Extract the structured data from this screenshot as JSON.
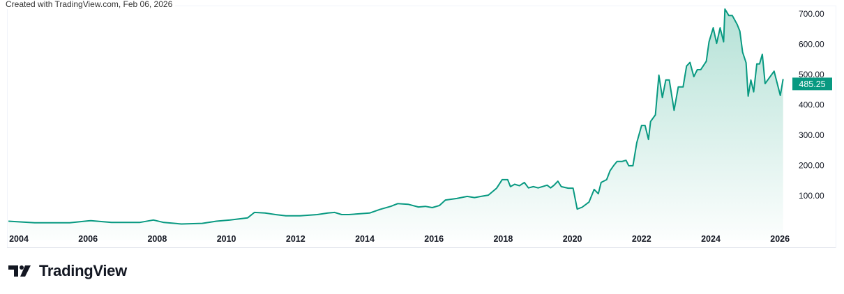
{
  "caption": "Created with TradingView.com, Feb 06, 2026",
  "brand": "TradingView",
  "colors": {
    "line": "#089981",
    "area_top": "#a7dccf",
    "price_tag": "#089981",
    "text": "#131722"
  },
  "chart_data": {
    "type": "area",
    "title": "",
    "xlabel": "",
    "ylabel": "",
    "x_ticks": [
      "2004",
      "2006",
      "2008",
      "2010",
      "2012",
      "2014",
      "2016",
      "2018",
      "2020",
      "2022",
      "2024",
      "2026"
    ],
    "y_ticks": [
      "100.00",
      "200.00",
      "300.00",
      "400.00",
      "500.00",
      "600.00",
      "700.00"
    ],
    "y_axis_position": "right",
    "xlim": [
      2003.7,
      2026.3
    ],
    "ylim": [
      -5,
      720
    ],
    "grid": false,
    "last_price": "485.25",
    "series": [
      {
        "points": [
          [
            2003.7,
            16
          ],
          [
            2004.46,
            11
          ],
          [
            2005.47,
            11
          ],
          [
            2006.08,
            18
          ],
          [
            2006.68,
            12
          ],
          [
            2007.49,
            12
          ],
          [
            2007.89,
            20
          ],
          [
            2008.19,
            12
          ],
          [
            2008.7,
            7
          ],
          [
            2009.3,
            9
          ],
          [
            2009.71,
            16
          ],
          [
            2010.11,
            20
          ],
          [
            2010.61,
            27
          ],
          [
            2010.81,
            45
          ],
          [
            2011.12,
            43
          ],
          [
            2011.42,
            38
          ],
          [
            2011.72,
            34
          ],
          [
            2012.13,
            34
          ],
          [
            2012.63,
            38
          ],
          [
            2012.93,
            43
          ],
          [
            2013.13,
            45
          ],
          [
            2013.33,
            38
          ],
          [
            2013.54,
            38
          ],
          [
            2014.14,
            43
          ],
          [
            2014.44,
            55
          ],
          [
            2014.75,
            65
          ],
          [
            2014.95,
            74
          ],
          [
            2015.25,
            72
          ],
          [
            2015.55,
            63
          ],
          [
            2015.75,
            65
          ],
          [
            2015.95,
            61
          ],
          [
            2016.16,
            68
          ],
          [
            2016.33,
            86
          ],
          [
            2016.66,
            91
          ],
          [
            2016.96,
            98
          ],
          [
            2017.17,
            94
          ],
          [
            2017.36,
            98
          ],
          [
            2017.57,
            102
          ],
          [
            2017.81,
            125
          ],
          [
            2017.97,
            153
          ],
          [
            2018.13,
            153
          ],
          [
            2018.21,
            130
          ],
          [
            2018.33,
            138
          ],
          [
            2018.47,
            133
          ],
          [
            2018.61,
            144
          ],
          [
            2018.73,
            126
          ],
          [
            2018.87,
            130
          ],
          [
            2019.01,
            126
          ],
          [
            2019.13,
            130
          ],
          [
            2019.27,
            135
          ],
          [
            2019.37,
            126
          ],
          [
            2019.47,
            135
          ],
          [
            2019.58,
            148
          ],
          [
            2019.68,
            130
          ],
          [
            2019.88,
            125
          ],
          [
            2020.02,
            125
          ],
          [
            2020.14,
            56
          ],
          [
            2020.28,
            62
          ],
          [
            2020.48,
            79
          ],
          [
            2020.63,
            121
          ],
          [
            2020.75,
            107
          ],
          [
            2020.83,
            144
          ],
          [
            2020.99,
            153
          ],
          [
            2021.09,
            183
          ],
          [
            2021.19,
            199
          ],
          [
            2021.29,
            213
          ],
          [
            2021.43,
            213
          ],
          [
            2021.55,
            217
          ],
          [
            2021.63,
            199
          ],
          [
            2021.75,
            199
          ],
          [
            2021.86,
            275
          ],
          [
            2022.0,
            332
          ],
          [
            2022.1,
            332
          ],
          [
            2022.2,
            286
          ],
          [
            2022.26,
            345
          ],
          [
            2022.4,
            367
          ],
          [
            2022.5,
            498
          ],
          [
            2022.6,
            424
          ],
          [
            2022.7,
            482
          ],
          [
            2022.8,
            482
          ],
          [
            2022.94,
            382
          ],
          [
            2023.06,
            459
          ],
          [
            2023.2,
            459
          ],
          [
            2023.3,
            528
          ],
          [
            2023.4,
            540
          ],
          [
            2023.51,
            493
          ],
          [
            2023.61,
            516
          ],
          [
            2023.71,
            516
          ],
          [
            2023.87,
            544
          ],
          [
            2023.95,
            608
          ],
          [
            2024.07,
            654
          ],
          [
            2024.17,
            603
          ],
          [
            2024.27,
            654
          ],
          [
            2024.37,
            608
          ],
          [
            2024.41,
            716
          ],
          [
            2024.52,
            695
          ],
          [
            2024.62,
            695
          ],
          [
            2024.76,
            666
          ],
          [
            2024.84,
            643
          ],
          [
            2024.92,
            574
          ],
          [
            2025.02,
            539
          ],
          [
            2025.08,
            429
          ],
          [
            2025.16,
            482
          ],
          [
            2025.24,
            443
          ],
          [
            2025.33,
            535
          ],
          [
            2025.41,
            535
          ],
          [
            2025.49,
            567
          ],
          [
            2025.57,
            470
          ],
          [
            2025.83,
            511
          ],
          [
            2026.01,
            431
          ],
          [
            2026.09,
            485.25
          ]
        ]
      }
    ]
  }
}
